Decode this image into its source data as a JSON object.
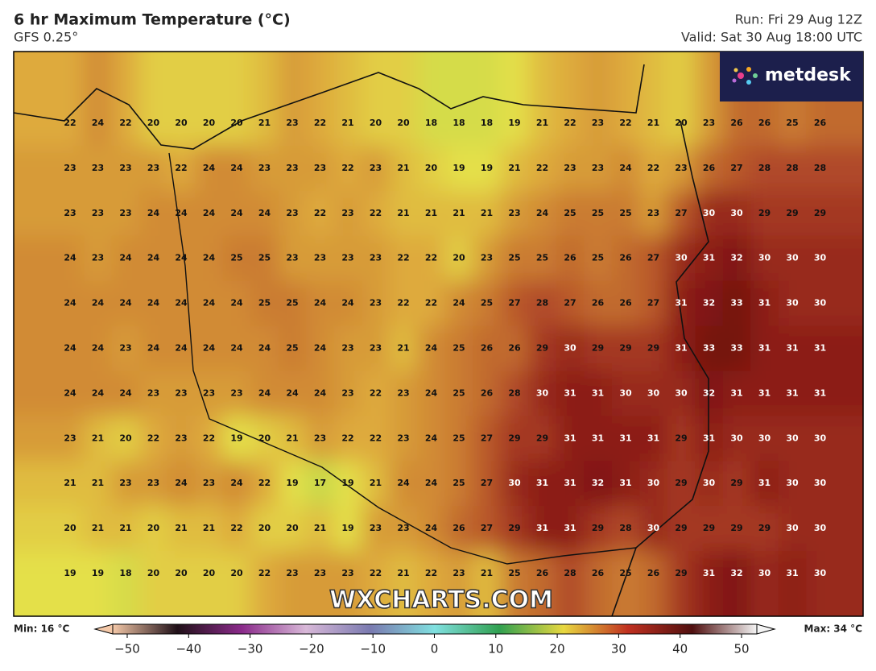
{
  "header": {
    "title": "6 hr Maximum Temperature (°C)",
    "model": "GFS 0.25°",
    "run": "Run: Fri 29 Aug 12Z",
    "valid": "Valid: Sat 30 Aug 18:00 UTC"
  },
  "logo": "metdesk",
  "watermark": "WXCHARTS.COM",
  "grid": {
    "rows": [
      [
        22,
        24,
        22,
        20,
        20,
        20,
        20,
        21,
        23,
        22,
        21,
        20,
        20,
        18,
        18,
        18,
        19,
        21,
        22,
        23,
        22,
        21,
        20,
        23,
        26,
        26,
        25,
        26
      ],
      [
        23,
        23,
        23,
        23,
        22,
        24,
        24,
        23,
        23,
        23,
        22,
        23,
        21,
        20,
        19,
        19,
        21,
        22,
        23,
        23,
        24,
        22,
        23,
        26,
        27,
        28,
        28,
        28
      ],
      [
        23,
        23,
        23,
        24,
        24,
        24,
        24,
        24,
        23,
        22,
        23,
        22,
        21,
        21,
        21,
        21,
        23,
        24,
        25,
        25,
        25,
        23,
        27,
        30,
        30,
        29,
        29,
        29
      ],
      [
        24,
        23,
        24,
        24,
        24,
        24,
        25,
        25,
        23,
        23,
        23,
        23,
        22,
        22,
        20,
        23,
        25,
        25,
        26,
        25,
        26,
        27,
        30,
        31,
        32,
        30,
        30,
        30
      ],
      [
        24,
        24,
        24,
        24,
        24,
        24,
        24,
        25,
        25,
        24,
        24,
        23,
        22,
        22,
        24,
        25,
        27,
        28,
        27,
        26,
        26,
        27,
        31,
        32,
        33,
        31,
        30,
        30
      ],
      [
        24,
        24,
        23,
        24,
        24,
        24,
        24,
        24,
        25,
        24,
        23,
        23,
        21,
        24,
        25,
        26,
        26,
        29,
        30,
        29,
        29,
        29,
        31,
        33,
        33,
        31,
        31,
        31
      ],
      [
        24,
        24,
        24,
        23,
        23,
        23,
        23,
        24,
        24,
        24,
        23,
        22,
        23,
        24,
        25,
        26,
        28,
        30,
        31,
        31,
        30,
        30,
        30,
        32,
        31,
        31,
        31,
        31
      ],
      [
        23,
        21,
        20,
        22,
        23,
        22,
        19,
        20,
        21,
        23,
        22,
        22,
        23,
        24,
        25,
        27,
        29,
        29,
        31,
        31,
        31,
        31,
        29,
        31,
        30,
        30,
        30,
        30
      ],
      [
        21,
        21,
        23,
        23,
        24,
        23,
        24,
        22,
        19,
        17,
        19,
        21,
        24,
        24,
        25,
        27,
        30,
        31,
        31,
        32,
        31,
        30,
        29,
        30,
        29,
        31,
        30,
        30
      ],
      [
        20,
        21,
        21,
        20,
        21,
        21,
        22,
        20,
        20,
        21,
        19,
        23,
        23,
        24,
        26,
        27,
        29,
        31,
        31,
        29,
        28,
        30,
        29,
        29,
        29,
        29,
        30,
        30
      ],
      [
        19,
        19,
        18,
        20,
        20,
        20,
        20,
        22,
        23,
        23,
        23,
        22,
        21,
        22,
        23,
        21,
        25,
        26,
        28,
        26,
        25,
        26,
        29,
        31,
        32,
        30,
        31,
        30
      ]
    ]
  },
  "colorbar": {
    "min_label": "Min: 16 °C",
    "max_label": "Max: 34 °C",
    "range": [
      -50,
      50
    ],
    "ticks": [
      {
        "value": -50,
        "label": "−50"
      },
      {
        "value": -40,
        "label": "−40"
      },
      {
        "value": -30,
        "label": "−30"
      },
      {
        "value": -20,
        "label": "−20"
      },
      {
        "value": -10,
        "label": "−10"
      },
      0,
      10,
      20,
      30,
      40,
      50
    ]
  }
}
